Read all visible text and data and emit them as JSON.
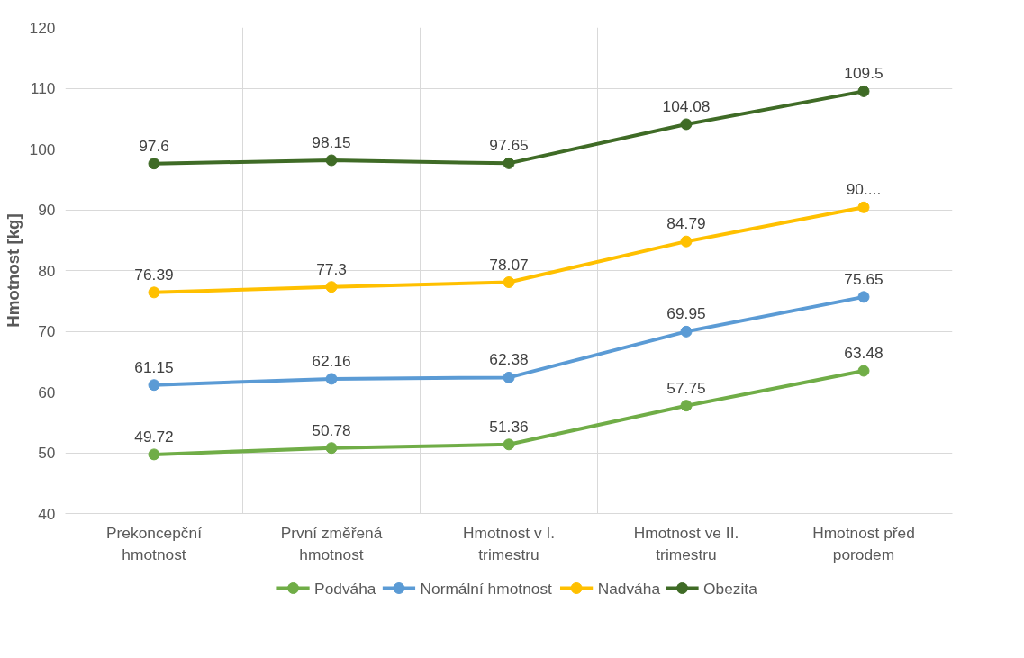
{
  "chart_data": {
    "type": "line",
    "ylabel": "Hmotnost [kg]",
    "categories": [
      "Prekoncepční hmotnost",
      "První změřená hmotnost",
      "Hmotnost v I. trimestru",
      "Hmotnost ve II. trimestru",
      "Hmotnost před porodem"
    ],
    "series": [
      {
        "name": "Podváha",
        "color": "#70ad47",
        "values": [
          49.72,
          50.78,
          51.36,
          57.75,
          63.48
        ],
        "value_labels": [
          "49.72",
          "50.78",
          "51.36",
          "57.75",
          "63.48"
        ]
      },
      {
        "name": "Normální hmotnost",
        "color": "#5b9bd5",
        "values": [
          61.15,
          62.16,
          62.38,
          69.95,
          75.65
        ],
        "value_labels": [
          "61.15",
          "62.16",
          "62.38",
          "69.95",
          "75.65"
        ]
      },
      {
        "name": "Nadváha",
        "color": "#ffc000",
        "values": [
          76.39,
          77.3,
          78.07,
          84.79,
          90.4
        ],
        "value_labels": [
          "76.39",
          "77.3",
          "78.07",
          "84.79",
          "90...."
        ]
      },
      {
        "name": "Obezita",
        "color": "#3f6b26",
        "values": [
          97.6,
          98.15,
          97.65,
          104.08,
          109.5
        ],
        "value_labels": [
          "97.6",
          "98.15",
          "97.65",
          "104.08",
          "109.5"
        ]
      }
    ],
    "ylim": [
      40,
      120
    ],
    "yticks": [
      40,
      50,
      60,
      70,
      80,
      90,
      100,
      110,
      120
    ],
    "grid": true,
    "legend": "bottom",
    "marker": "circle",
    "line_style": "solid"
  }
}
